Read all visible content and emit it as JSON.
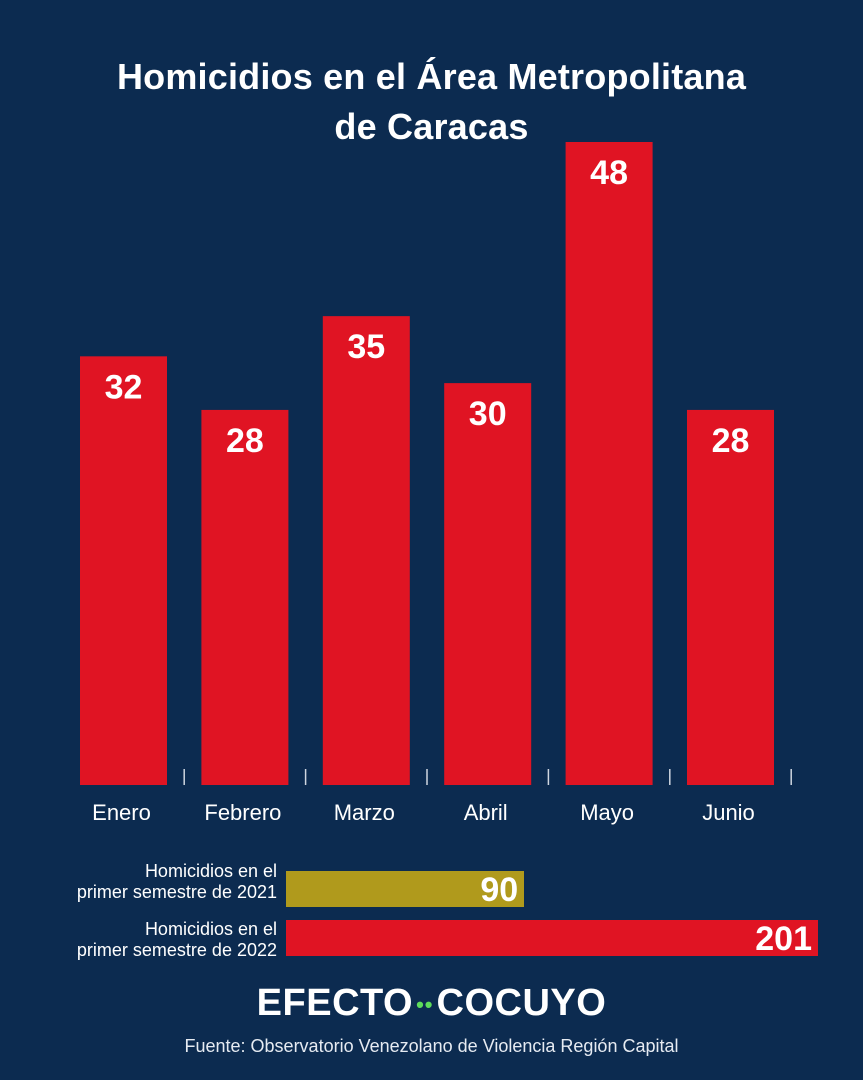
{
  "title": {
    "line1": "Homicidios en el Área Metropolitana",
    "line2": "de Caracas"
  },
  "colors": {
    "background": "#0c2b50",
    "bar": "#e01423",
    "semester_2021": "#b09a1c",
    "semester_2022": "#e01423",
    "logo_dots": "#5ddc5a"
  },
  "chart_data": [
    {
      "type": "bar",
      "title": "Homicidios en el Área Metropolitana de Caracas",
      "categories": [
        "Enero",
        "Febrero",
        "Marzo",
        "Abril",
        "Mayo",
        "Junio"
      ],
      "values": [
        32,
        28,
        35,
        30,
        48,
        28
      ],
      "xlabel": "",
      "ylabel": "",
      "ylim": [
        0,
        48
      ],
      "grid": false,
      "data_labels": "inside-top"
    },
    {
      "type": "bar",
      "orientation": "horizontal",
      "categories": [
        "Homicidios en el primer semestre de 2021",
        "Homicidios en el primer semestre de 2022"
      ],
      "values": [
        90,
        201
      ],
      "xlim": [
        0,
        201
      ]
    }
  ],
  "semesters": [
    {
      "label_line1": "Homicidios en el",
      "label_line2": "primer semestre de 2021",
      "value": "90"
    },
    {
      "label_line1": "Homicidios en el",
      "label_line2": "primer semestre de 2022",
      "value": "201"
    }
  ],
  "logo": {
    "left": "EFECTO",
    "dots": "••",
    "right": "COCUYO"
  },
  "source": "Fuente: Observatorio Venezolano de Violencia Región Capital"
}
